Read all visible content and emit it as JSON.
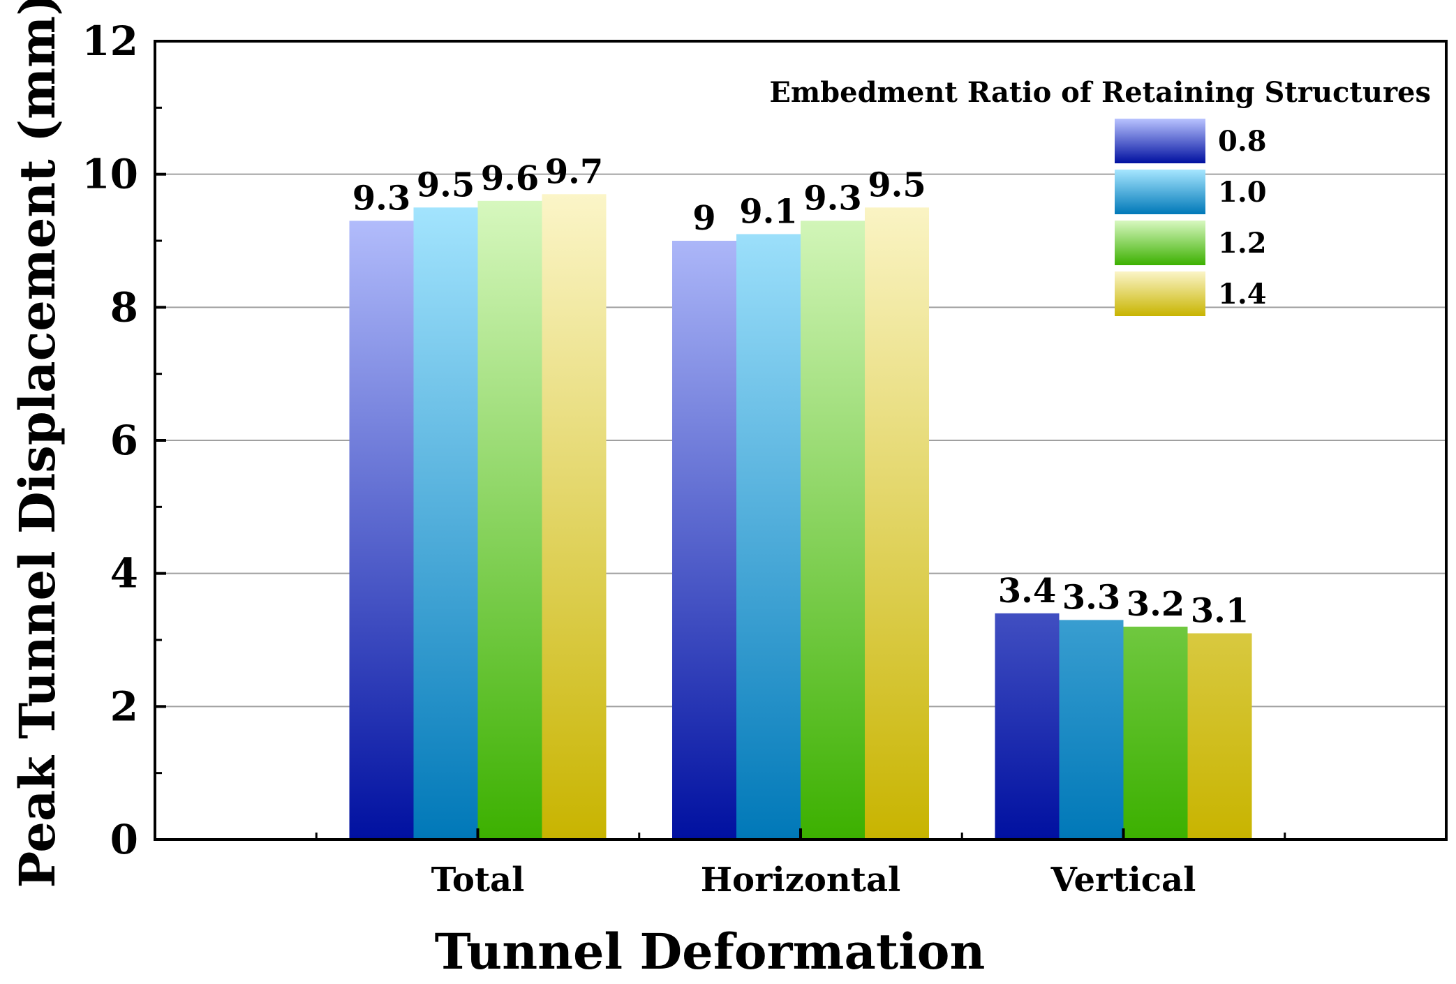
{
  "chart_data": {
    "type": "bar",
    "title": "",
    "xlabel": "Tunnel Deformation",
    "ylabel": "Peak Tunnel Displacement (mm)",
    "ylim": [
      0,
      12
    ],
    "yticks": [
      "0",
      "2",
      "4",
      "6",
      "8",
      "10",
      "12"
    ],
    "grid": true,
    "legend_position": "top-right",
    "legend_title": "Embedment Ratio of Retaining Structures",
    "categories": [
      "Total",
      "Horizontal",
      "Vertical"
    ],
    "series": [
      {
        "name": "0.8",
        "values": [
          9.3,
          9,
          3.4
        ],
        "labels": [
          "9.3",
          "9",
          "3.4"
        ]
      },
      {
        "name": "1.0",
        "values": [
          9.5,
          9.1,
          3.3
        ],
        "labels": [
          "9.5",
          "9.1",
          "3.3"
        ]
      },
      {
        "name": "1.2",
        "values": [
          9.6,
          9.3,
          3.2
        ],
        "labels": [
          "9.6",
          "9.3",
          "3.2"
        ]
      },
      {
        "name": "1.4",
        "values": [
          9.7,
          9.5,
          3.1
        ],
        "labels": [
          "9.7",
          "9.5",
          "3.1"
        ]
      }
    ],
    "colors": {
      "0.8": {
        "top": "#b9c3ff",
        "bottom": "#0010a0"
      },
      "1.0": {
        "top": "#a6e6ff",
        "bottom": "#0078b8"
      },
      "1.2": {
        "top": "#d8f8c0",
        "bottom": "#3cb000"
      },
      "1.4": {
        "top": "#fbf5c8",
        "bottom": "#c8b400"
      }
    },
    "grid_color": "#a0a0a0"
  }
}
